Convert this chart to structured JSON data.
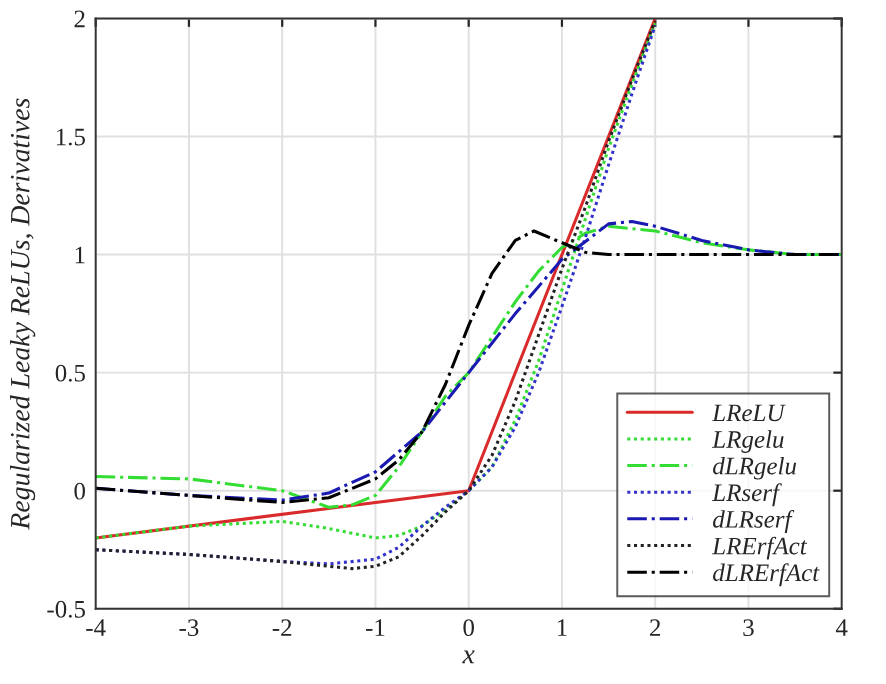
{
  "chart_data": {
    "type": "line",
    "xlabel": "x",
    "ylabel": "Regularized Leaky ReLUs, Derivatives",
    "xlim": [
      -4,
      4
    ],
    "ylim": [
      -0.5,
      2
    ],
    "xticks": [
      -4,
      -3,
      -2,
      -1,
      0,
      1,
      2,
      3,
      4
    ],
    "yticks": [
      -0.5,
      0,
      0.5,
      1,
      1.5,
      2
    ],
    "grid": true,
    "legend": "bottom right",
    "marker": "none",
    "series": [
      {
        "name": "LReLU",
        "color": "#d92b2b",
        "line_style": "solid",
        "x": [
          -4,
          0,
          2
        ],
        "values": [
          -0.2,
          0,
          2
        ]
      },
      {
        "name": "LRgelu",
        "color": "#33dd33",
        "line_style": "dotted",
        "x": [
          -4,
          -3,
          -2,
          -1.5,
          -1,
          -0.75,
          -0.5,
          -0.25,
          0,
          0.25,
          0.5,
          0.75,
          1,
          1.25,
          1.5,
          1.75,
          2
        ],
        "values": [
          -0.2,
          -0.15,
          -0.13,
          -0.16,
          -0.2,
          -0.19,
          -0.15,
          -0.08,
          0,
          0.1,
          0.3,
          0.55,
          0.85,
          1.15,
          1.45,
          1.72,
          1.98
        ]
      },
      {
        "name": "dLRgelu",
        "color": "#33dd33",
        "line_style": "dashed",
        "x": [
          -4,
          -3,
          -2,
          -1.5,
          -1.25,
          -1,
          -0.75,
          -0.5,
          -0.25,
          0,
          0.25,
          0.5,
          0.75,
          1,
          1.25,
          1.5,
          2,
          2.5,
          3,
          3.5,
          4
        ],
        "values": [
          0.06,
          0.05,
          0.0,
          -0.07,
          -0.06,
          -0.02,
          0.1,
          0.25,
          0.4,
          0.5,
          0.65,
          0.8,
          0.93,
          1.03,
          1.09,
          1.12,
          1.1,
          1.05,
          1.02,
          1.0,
          1.0
        ]
      },
      {
        "name": "LRserf",
        "color": "#3333cc",
        "line_style": "dotted",
        "x": [
          -4,
          -3,
          -2,
          -1.5,
          -1,
          -0.75,
          -0.5,
          -0.25,
          0,
          0.25,
          0.5,
          0.75,
          1,
          1.25,
          1.5,
          1.75,
          2
        ],
        "values": [
          -0.25,
          -0.27,
          -0.3,
          -0.31,
          -0.29,
          -0.24,
          -0.15,
          -0.07,
          0,
          0.1,
          0.27,
          0.5,
          0.78,
          1.07,
          1.38,
          1.68,
          1.97
        ]
      },
      {
        "name": "dLRserf",
        "color": "#1a1ab3",
        "line_style": "dashed",
        "x": [
          -4,
          -3,
          -2,
          -1.5,
          -1,
          -0.5,
          0,
          0.5,
          1,
          1.5,
          1.75,
          2,
          2.5,
          3,
          3.5,
          4
        ],
        "values": [
          0.01,
          -0.02,
          -0.04,
          -0.01,
          0.08,
          0.25,
          0.5,
          0.75,
          0.98,
          1.13,
          1.14,
          1.12,
          1.06,
          1.02,
          1.0,
          1.0
        ]
      },
      {
        "name": "LRErfAct",
        "color": "#222222",
        "line_style": "dotted",
        "x": [
          -4,
          -3,
          -2,
          -1.5,
          -1.25,
          -1,
          -0.75,
          -0.5,
          -0.25,
          0,
          0.25,
          0.5,
          0.75,
          1,
          1.25,
          1.5,
          1.75,
          2
        ],
        "values": [
          -0.25,
          -0.27,
          -0.3,
          -0.32,
          -0.33,
          -0.32,
          -0.28,
          -0.19,
          -0.09,
          0,
          0.15,
          0.38,
          0.66,
          0.94,
          1.2,
          1.48,
          1.74,
          1.99
        ]
      },
      {
        "name": "dLRErfAct",
        "color": "#000000",
        "line_style": "dashed",
        "x": [
          -4,
          -3,
          -2,
          -1.5,
          -1,
          -0.75,
          -0.5,
          -0.25,
          0,
          0.25,
          0.5,
          0.7,
          1,
          1.25,
          1.5,
          2,
          4
        ],
        "values": [
          0.01,
          -0.02,
          -0.05,
          -0.03,
          0.05,
          0.13,
          0.25,
          0.45,
          0.7,
          0.92,
          1.06,
          1.1,
          1.05,
          1.01,
          1.0,
          1.0,
          1.0
        ]
      }
    ]
  }
}
